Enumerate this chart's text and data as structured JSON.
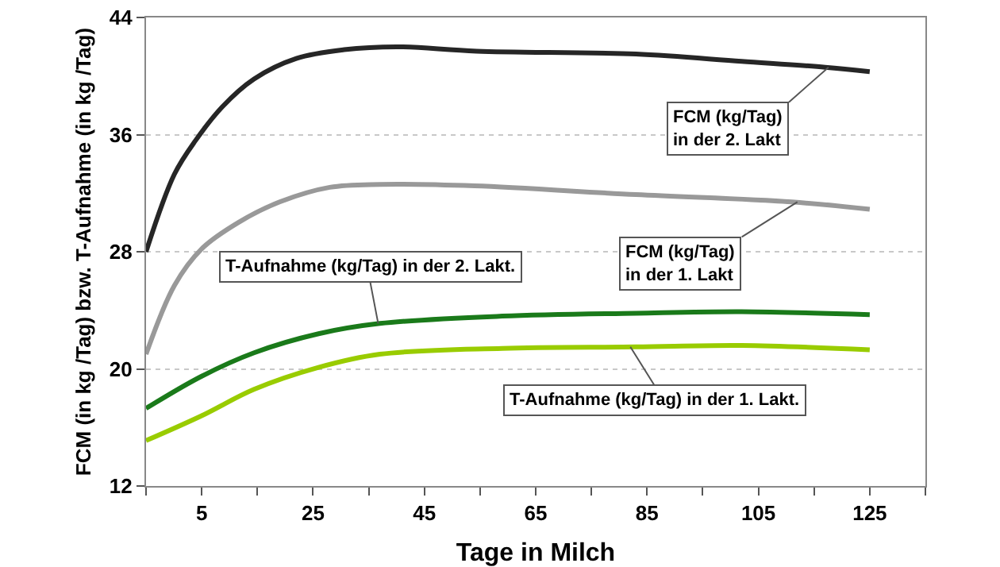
{
  "chart_data": {
    "type": "line",
    "xlabel": "Tage in Milch",
    "ylabel": "FCM (in kg /Tag) bzw. T-Aufnahme (in kg /Tag)",
    "xlim": [
      -5,
      135
    ],
    "xticks": [
      {
        "value": -5,
        "label": null
      },
      5,
      {
        "value": 15,
        "label": null
      },
      25,
      {
        "value": 35,
        "label": null
      },
      45,
      {
        "value": 55,
        "label": null
      },
      65,
      {
        "value": 75,
        "label": null
      },
      85,
      {
        "value": 95,
        "label": null
      },
      105,
      {
        "value": 115,
        "label": null
      },
      125,
      {
        "value": 135,
        "label": null
      }
    ],
    "ylim": [
      12,
      44
    ],
    "yticks": [
      12,
      20,
      28,
      36,
      44
    ],
    "grid": "y",
    "marker": "none",
    "line_style": "solid",
    "series": [
      {
        "color": "#262626",
        "x": [
          -5,
          0.1,
          3.9,
          8.7,
          14.4,
          22,
          30.6,
          40,
          54.4,
          83,
          102,
          117,
          125
        ],
        "values": [
          28.0,
          33.3,
          35.6,
          37.9,
          39.8,
          41.2,
          41.8,
          42.0,
          41.7,
          41.5,
          41.0,
          40.6,
          40.3
        ]
      },
      {
        "color": "#999999",
        "x": [
          -5,
          0.1,
          5,
          11.6,
          19,
          28,
          37,
          54,
          83,
          111,
          125
        ],
        "values": [
          21.0,
          25.7,
          28.2,
          30.0,
          31.4,
          32.4,
          32.6,
          32.5,
          31.9,
          31.4,
          30.9
        ]
      },
      {
        "color": "#1a7a1a",
        "x": [
          -5,
          5,
          14.4,
          26,
          37,
          59,
          83,
          102,
          125
        ],
        "values": [
          17.3,
          19.5,
          21.1,
          22.4,
          23.1,
          23.6,
          23.8,
          23.9,
          23.7
        ]
      },
      {
        "color": "#99cc00",
        "x": [
          -5,
          5,
          14.4,
          26,
          37,
          59,
          83,
          102,
          125
        ],
        "values": [
          15.1,
          16.8,
          18.6,
          20.1,
          21.0,
          21.4,
          21.5,
          21.6,
          21.3
        ]
      }
    ],
    "annotations": [
      {
        "text": "FCM (kg/Tag)\nin der 2. Lakt",
        "x": 117.6,
        "y": 40.6
      },
      {
        "text": "FCM (kg/Tag)\nin der 1. Lakt",
        "x": 112,
        "y": 31.4
      },
      {
        "text": "T-Aufnahme (kg/Tag) in der 2. Lakt.",
        "x": 36.7,
        "y": 23.1
      },
      {
        "text": "T-Aufnahme (kg/Tag) in der 1. Lakt.",
        "x": 82,
        "y": 21.5
      }
    ]
  }
}
